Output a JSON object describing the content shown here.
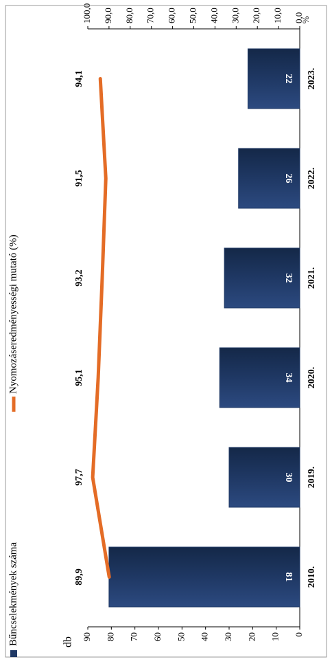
{
  "chart_data": {
    "type": "bar",
    "categories": [
      "2010.",
      "2019.",
      "2020.",
      "2021.",
      "2022.",
      "2023."
    ],
    "series": [
      {
        "name": "Bűncselekmények száma",
        "type": "bar",
        "color": "#1f3864",
        "values": [
          81,
          30,
          34,
          32,
          26,
          22
        ]
      },
      {
        "name": "Nyomozáseredményességi mutató (%)",
        "type": "line",
        "axis": "y2",
        "color": "#e46c26",
        "values": [
          89.9,
          97.7,
          95.1,
          93.2,
          91.5,
          94.1
        ],
        "value_labels": [
          "89,9",
          "97,7",
          "95,1",
          "93,2",
          "91,5",
          "94,1"
        ]
      }
    ],
    "y_label": "db",
    "y2_label": "%",
    "ylim": [
      0,
      90
    ],
    "yticks": [
      0,
      10,
      20,
      30,
      40,
      50,
      60,
      70,
      80,
      90
    ],
    "y2lim": [
      0,
      100
    ],
    "y2ticks": [
      {
        "value": 0,
        "label": "0,0"
      },
      {
        "value": 10,
        "label": "10,0"
      },
      {
        "value": 20,
        "label": "20,0"
      },
      {
        "value": 30,
        "label": "30,0"
      },
      {
        "value": 40,
        "label": "40,0"
      },
      {
        "value": 50,
        "label": "50,0"
      },
      {
        "value": 60,
        "label": "60,0"
      },
      {
        "value": 70,
        "label": "70,0"
      },
      {
        "value": 80,
        "label": "80,0"
      },
      {
        "value": 90,
        "label": "90,0"
      },
      {
        "value": 100,
        "label": "100,0"
      }
    ],
    "grid": false,
    "legend": "top"
  }
}
